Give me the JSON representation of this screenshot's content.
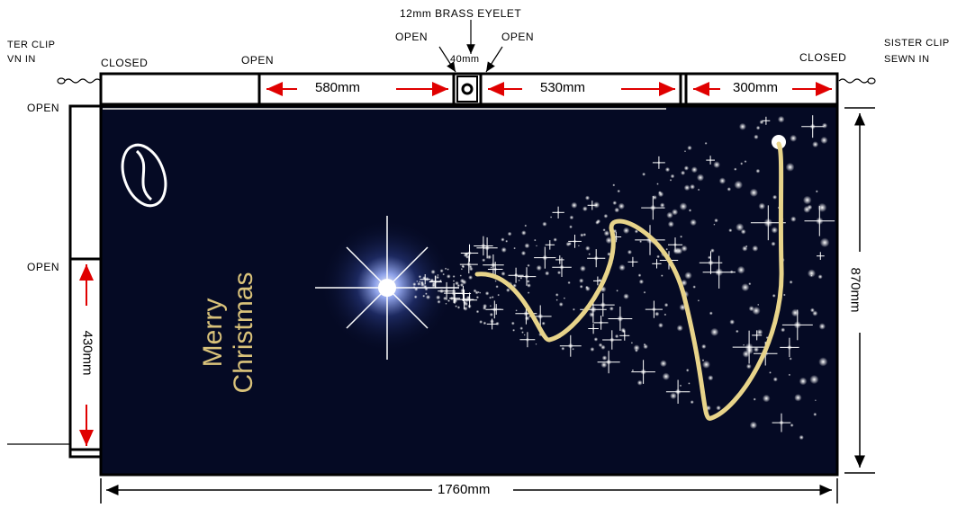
{
  "labels": {
    "brass_eyelet": "12mm BRASS EYELET",
    "eyelet_offset": "40mm",
    "open_mid_left": "OPEN",
    "open_mid_right": "OPEN",
    "closed_left": "CLOSED",
    "open_top_left": "OPEN",
    "closed_right": "CLOSED",
    "sister_clip_left_1": "TER CLIP",
    "sister_clip_left_2": "VN IN",
    "sister_clip_right_1": "SISTER CLIP",
    "sister_clip_right_2": "SEWN IN",
    "open_side_top": "OPEN",
    "open_side_mid": "OPEN"
  },
  "dimensions": {
    "sleeve_580": "580mm",
    "sleeve_530": "530mm",
    "sleeve_300": "300mm",
    "width_total": "1760mm",
    "height_total": "870mm",
    "side_430": "430mm"
  },
  "banner": {
    "line1": "Merry",
    "line2": "Christmas",
    "background": "#050a24",
    "text_color": "#d9c27a",
    "ribbon_color": "#e8d48a",
    "dimension_arrow_color": "#e00000"
  }
}
